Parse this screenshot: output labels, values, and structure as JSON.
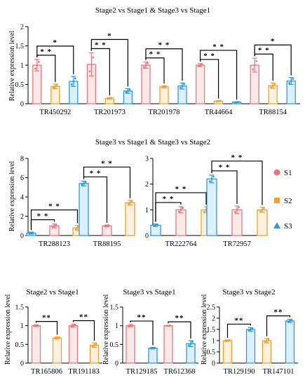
{
  "colors": {
    "S1": "#e8777d",
    "S1fill": "#fbe9e9",
    "S2": "#f0a030",
    "S2fill": "#fdf0dd",
    "S3": "#2f9be0",
    "S3fill": "#dcefff"
  },
  "legend": [
    {
      "key": "S1",
      "label": "S1",
      "marker": "circle"
    },
    {
      "key": "S2",
      "label": "S2",
      "marker": "square"
    },
    {
      "key": "S3",
      "label": "S3",
      "marker": "triangle"
    }
  ],
  "chart_data": [
    {
      "type": "bar",
      "title": "Stage2 vs Stage1 & Stage3 vs Stage1",
      "ylabel": "Relative expression level",
      "ylim": [
        0,
        2
      ],
      "yticks": [
        "0",
        "0.5",
        "1",
        "1.5",
        "2"
      ],
      "categories": [
        "TR450292",
        "TR201973",
        "TR201978",
        "TR44664",
        "TR88154"
      ],
      "series": [
        {
          "key": "S1",
          "values": [
            1.0,
            1.02,
            1.0,
            1.0,
            1.0
          ],
          "err": [
            0.15,
            0.3,
            0.08,
            0.04,
            0.18
          ]
        },
        {
          "key": "S2",
          "values": [
            0.45,
            0.14,
            0.44,
            0.07,
            0.47
          ],
          "err": [
            0.06,
            0.02,
            0.03,
            0.01,
            0.07
          ]
        },
        {
          "key": "S3",
          "values": [
            0.58,
            0.33,
            0.46,
            0.04,
            0.59
          ],
          "err": [
            0.13,
            0.06,
            0.08,
            0.01,
            0.09
          ]
        }
      ],
      "significance": [
        {
          "cat": 0,
          "from": "S1",
          "to": "S2",
          "label": "* *"
        },
        {
          "cat": 0,
          "from": "S1",
          "to": "S3",
          "label": "*"
        },
        {
          "cat": 1,
          "from": "S1",
          "to": "S2",
          "label": "* *"
        },
        {
          "cat": 1,
          "from": "S1",
          "to": "S3",
          "label": "*"
        },
        {
          "cat": 2,
          "from": "S1",
          "to": "S2",
          "label": "* *"
        },
        {
          "cat": 2,
          "from": "S1",
          "to": "S3",
          "label": "* *"
        },
        {
          "cat": 3,
          "from": "S1",
          "to": "S2",
          "label": "* *"
        },
        {
          "cat": 3,
          "from": "S1",
          "to": "S3",
          "label": "* *"
        },
        {
          "cat": 4,
          "from": "S1",
          "to": "S2",
          "label": "* *"
        },
        {
          "cat": 4,
          "from": "S1",
          "to": "S3",
          "label": "*"
        }
      ]
    },
    {
      "type": "bar",
      "title": "Stage3 vs Stage1 & Stage3 vs Stage2",
      "ylabel": "Relative expression level",
      "ylim": [
        0,
        8
      ],
      "yticks": [
        "0",
        "2",
        "4",
        "6",
        "8"
      ],
      "categories": [
        "TR288123",
        "TR88195"
      ],
      "series": [
        {
          "key": "S3",
          "values": [
            0.25,
            5.4
          ],
          "err": [
            0.1,
            0.25
          ]
        },
        {
          "key": "S1",
          "values": [
            1.0,
            1.0
          ],
          "err": [
            0.2,
            0.1
          ]
        },
        {
          "key": "S2",
          "values": [
            0.8,
            3.4
          ],
          "err": [
            0.25,
            0.25
          ]
        }
      ],
      "significance": [
        {
          "cat": 0,
          "from": "S3",
          "to": "S1",
          "label": "* *"
        },
        {
          "cat": 0,
          "from": "S3",
          "to": "S2",
          "label": "* *"
        },
        {
          "cat": 1,
          "from": "S3",
          "to": "S1",
          "label": "* *"
        },
        {
          "cat": 1,
          "from": "S3",
          "to": "S2",
          "label": "* *"
        }
      ]
    },
    {
      "type": "bar",
      "title": "",
      "ylabel": "",
      "ylim": [
        0,
        3
      ],
      "yticks": [
        "0",
        "1",
        "2",
        "3"
      ],
      "categories": [
        "TR222764",
        "TR72957"
      ],
      "series": [
        {
          "key": "S3",
          "values": [
            0.4,
            2.2
          ],
          "err": [
            0.05,
            0.15
          ]
        },
        {
          "key": "S1",
          "values": [
            1.0,
            1.0
          ],
          "err": [
            0.12,
            0.15
          ]
        },
        {
          "key": "S2",
          "values": [
            1.0,
            1.0
          ],
          "err": [
            0.12,
            0.1
          ]
        }
      ],
      "significance": [
        {
          "cat": 0,
          "from": "S3",
          "to": "S1",
          "label": "* *"
        },
        {
          "cat": 0,
          "from": "S3",
          "to": "S2",
          "label": "* *"
        },
        {
          "cat": 1,
          "from": "S3",
          "to": "S1",
          "label": "* *"
        },
        {
          "cat": 1,
          "from": "S3",
          "to": "S2",
          "label": "* *"
        }
      ]
    },
    {
      "type": "bar",
      "title": "Stage2 vs Stage1",
      "ylabel": "Relative expression level",
      "ylim": [
        0,
        1.5
      ],
      "yticks": [
        "0",
        "0.5",
        "1",
        "1.5"
      ],
      "categories": [
        "TR165806",
        "TR191183"
      ],
      "series": [
        {
          "key": "S1",
          "values": [
            1.0,
            1.0
          ],
          "err": [
            0.02,
            0.04
          ]
        },
        {
          "key": "S2",
          "values": [
            0.67,
            0.48
          ],
          "err": [
            0.03,
            0.06
          ]
        }
      ],
      "significance": [
        {
          "cat": 0,
          "from": "S1",
          "to": "S2",
          "label": "**"
        },
        {
          "cat": 1,
          "from": "S1",
          "to": "S2",
          "label": "**"
        }
      ]
    },
    {
      "type": "bar",
      "title": "Stage3 vs Stage1",
      "ylabel": "Relative expression level",
      "ylim": [
        0,
        1.5
      ],
      "yticks": [
        "0",
        "0.5",
        "1",
        "1.5"
      ],
      "categories": [
        "TR129185",
        "TR612368"
      ],
      "series": [
        {
          "key": "S1",
          "values": [
            1.0,
            1.0
          ],
          "err": [
            0.03,
            0.01
          ]
        },
        {
          "key": "S3",
          "values": [
            0.4,
            0.52
          ],
          "err": [
            0.02,
            0.08
          ]
        }
      ],
      "significance": [
        {
          "cat": 0,
          "from": "S1",
          "to": "S3",
          "label": "**"
        },
        {
          "cat": 1,
          "from": "S1",
          "to": "S3",
          "label": "**"
        }
      ]
    },
    {
      "type": "bar",
      "title": "Stage3 vs Stage2",
      "ylabel": "Relative expression level",
      "ylim": [
        0,
        2.5
      ],
      "yticks": [
        "0",
        "0.5",
        "1",
        "1.5",
        "2",
        "2.5"
      ],
      "categories": [
        "TR129190",
        "TR147101"
      ],
      "series": [
        {
          "key": "S2",
          "values": [
            1.0,
            1.0
          ],
          "err": [
            0.03,
            0.1
          ]
        },
        {
          "key": "S3",
          "values": [
            1.5,
            1.88
          ],
          "err": [
            0.08,
            0.07
          ]
        }
      ],
      "significance": [
        {
          "cat": 0,
          "from": "S2",
          "to": "S3",
          "label": "**"
        },
        {
          "cat": 1,
          "from": "S2",
          "to": "S3",
          "label": "**"
        }
      ]
    }
  ]
}
